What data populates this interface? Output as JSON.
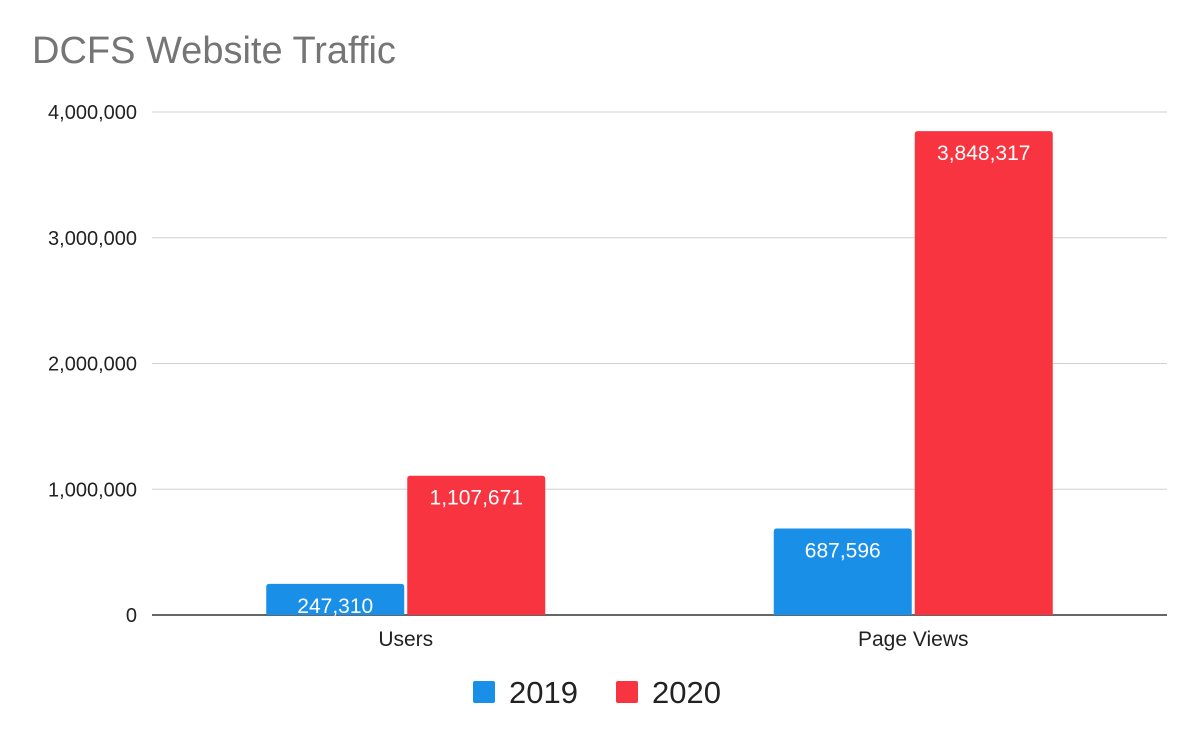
{
  "chart_data": {
    "type": "bar",
    "title": "DCFS Website Traffic",
    "categories": [
      "Users",
      "Page Views"
    ],
    "series": [
      {
        "name": "2019",
        "color": "#1a8fe8",
        "values": [
          247310,
          687596
        ],
        "labels": [
          "247,310",
          "687,596"
        ]
      },
      {
        "name": "2020",
        "color": "#f7343f",
        "values": [
          1107671,
          3848317
        ],
        "labels": [
          "1,107,671",
          "3,848,317"
        ]
      }
    ],
    "ylim": [
      0,
      4000000
    ],
    "yticks": [
      0,
      1000000,
      2000000,
      3000000,
      4000000
    ],
    "ytick_labels": [
      "0",
      "1,000,000",
      "2,000,000",
      "3,000,000",
      "4,000,000"
    ],
    "xlabel": "",
    "ylabel": "",
    "grid": true,
    "legend": "bottom"
  }
}
